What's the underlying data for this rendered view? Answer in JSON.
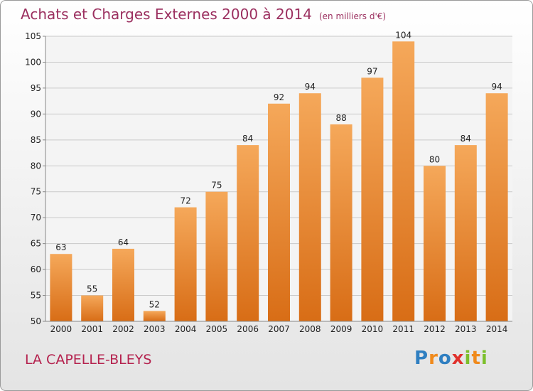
{
  "chart_data": {
    "type": "bar",
    "title": "Achats et Charges Externes 2000 à 2014",
    "subtitle": "(en milliers d'€)",
    "categories": [
      "2000",
      "2001",
      "2002",
      "2003",
      "2004",
      "2005",
      "2006",
      "2007",
      "2008",
      "2009",
      "2010",
      "2011",
      "2012",
      "2013",
      "2014"
    ],
    "values": [
      63,
      55,
      64,
      52,
      72,
      75,
      84,
      92,
      94,
      88,
      97,
      104,
      80,
      84,
      94
    ],
    "ylim": [
      50,
      105
    ],
    "yticks": [
      50,
      55,
      60,
      65,
      70,
      75,
      80,
      85,
      90,
      95,
      100,
      105
    ],
    "grid": true,
    "bar_color": "#e8822e"
  },
  "location": "LA CAPELLE-BLEYS",
  "brand": {
    "letters": [
      "P",
      "r",
      "o",
      "x",
      "i",
      "t",
      "i"
    ],
    "colors": [
      "#2f7fc1",
      "#f08a1c",
      "#2f7fc1",
      "#e0312c",
      "#7cbf2c",
      "#f08a1c",
      "#7cbf2c"
    ]
  }
}
